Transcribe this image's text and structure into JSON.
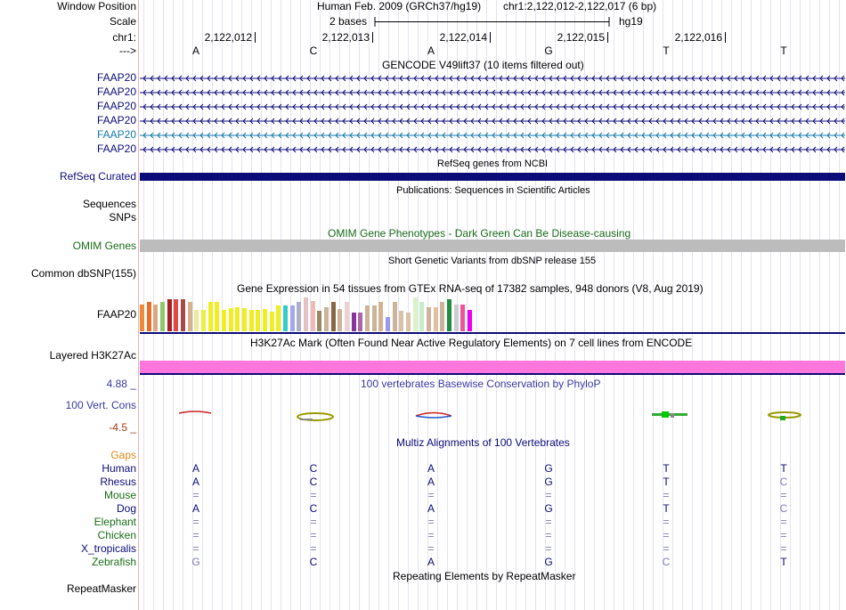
{
  "header": {
    "window_position_label": "Window Position",
    "scale_label": "Scale",
    "chrom_label": "chr1:",
    "strand_label": "--->",
    "assembly_text": "Human Feb. 2009 (GRCh37/hg19)",
    "position_text": "chr1:2,122,012-2,122,017 (6 bp)",
    "scale_text": "2 bases",
    "db_text": "hg19",
    "ruler_ticks": [
      "2,122,012",
      "2,122,013",
      "2,122,014",
      "2,122,015",
      "2,122,016"
    ],
    "sequence": [
      "A",
      "C",
      "A",
      "G",
      "T",
      "T"
    ]
  },
  "gencode": {
    "title": "GENCODE V49lift37 (10 items filtered out)",
    "transcripts": [
      {
        "label": "FAAP20",
        "color": "#0c0c78"
      },
      {
        "label": "FAAP20",
        "color": "#0c0c78"
      },
      {
        "label": "FAAP20",
        "color": "#0c0c78"
      },
      {
        "label": "FAAP20",
        "color": "#0c0c78"
      },
      {
        "label": "FAAP20",
        "color": "#1479a8"
      },
      {
        "label": "FAAP20",
        "color": "#0c0c78"
      }
    ]
  },
  "refseq": {
    "title": "RefSeq genes from NCBI",
    "label": "RefSeq Curated",
    "color": "#0c0c78"
  },
  "publications": {
    "title": "Publications: Sequences in Scientific Articles",
    "sequences_label": "Sequences",
    "snps_label": "SNPs"
  },
  "omim": {
    "title": "OMIM Gene Phenotypes - Dark Green Can Be Disease-causing",
    "label": "OMIM Genes",
    "color": "#1a6b1a"
  },
  "dbsnp": {
    "title": "Short Genetic Variants from dbSNP release 155",
    "label": "Common dbSNP(155)"
  },
  "gtex": {
    "title": "Gene Expression in 54 tissues from GTEx RNA-seq of 17382 samples, 948 donors (V8, Aug 2019)",
    "label": "FAAP20",
    "bars": [
      {
        "value": 0.8,
        "color": "#ee8a3a"
      },
      {
        "value": 0.88,
        "color": "#e96d2b"
      },
      {
        "value": 0.8,
        "color": "#d9a87f"
      },
      {
        "value": 0.88,
        "color": "#90c96a"
      },
      {
        "value": 0.96,
        "color": "#a62222"
      },
      {
        "value": 0.96,
        "color": "#e04848"
      },
      {
        "value": 0.96,
        "color": "#a44a4a"
      },
      {
        "value": 0.88,
        "color": "#d6b28e"
      },
      {
        "value": 0.64,
        "color": "#efeaa0"
      },
      {
        "value": 0.64,
        "color": "#eeee44"
      },
      {
        "value": 0.86,
        "color": "#eeee22"
      },
      {
        "value": 0.86,
        "color": "#eeee22"
      },
      {
        "value": 0.62,
        "color": "#eeee22"
      },
      {
        "value": 0.68,
        "color": "#eeee22"
      },
      {
        "value": 0.72,
        "color": "#eeee22"
      },
      {
        "value": 0.68,
        "color": "#eeee22"
      },
      {
        "value": 0.62,
        "color": "#eeee22"
      },
      {
        "value": 0.62,
        "color": "#eeee22"
      },
      {
        "value": 0.66,
        "color": "#eeee22"
      },
      {
        "value": 0.58,
        "color": "#eeee22"
      },
      {
        "value": 0.76,
        "color": "#eeee22"
      },
      {
        "value": 0.76,
        "color": "#33cccc"
      },
      {
        "value": 0.76,
        "color": "#a6a6ee"
      },
      {
        "value": 0.86,
        "color": "#aab0c8"
      },
      {
        "value": 1.0,
        "color": "#e6c3c3"
      },
      {
        "value": 0.9,
        "color": "#eebbbb"
      },
      {
        "value": 0.6,
        "color": "#998866"
      },
      {
        "value": 0.7,
        "color": "#ccb49a"
      },
      {
        "value": 0.86,
        "color": "#886644"
      },
      {
        "value": 0.66,
        "color": "#ccb49a"
      },
      {
        "value": 0.86,
        "color": "#eed0d0"
      },
      {
        "value": 0.56,
        "color": "#883399"
      },
      {
        "value": 0.56,
        "color": "#aa66aa"
      },
      {
        "value": 0.76,
        "color": "#ccb49a"
      },
      {
        "value": 0.76,
        "color": "#ccb49a"
      },
      {
        "value": 0.86,
        "color": "#d6b28e"
      },
      {
        "value": 0.42,
        "color": "#9999ee"
      },
      {
        "value": 0.86,
        "color": "#ccb49a"
      },
      {
        "value": 0.6,
        "color": "#d9c2a6"
      },
      {
        "value": 0.56,
        "color": "#d9c2a6"
      },
      {
        "value": 1.0,
        "color": "#dcf2c8"
      },
      {
        "value": 0.86,
        "color": "#c6eec6"
      },
      {
        "value": 0.72,
        "color": "#ccb49a"
      },
      {
        "value": 0.72,
        "color": "#e0c0a0"
      },
      {
        "value": 0.86,
        "color": "#ccb49a"
      },
      {
        "value": 0.96,
        "color": "#1f8f3f"
      },
      {
        "value": 0.78,
        "color": "#cccccc"
      },
      {
        "value": 0.78,
        "color": "#ee5599"
      },
      {
        "value": 0.62,
        "color": "#ee00ee"
      }
    ]
  },
  "h3k27ac": {
    "title": "H3K27Ac Mark (Often Found Near Active Regulatory Elements) on 7 cell lines from ENCODE",
    "label": "Layered H3K27Ac",
    "color": "#ff77dd"
  },
  "conservation": {
    "title": "100 vertebrates Basewise Conservation by PhyloP",
    "label": "100 Vert. Cons",
    "max_label": "4.88 _",
    "min_label": "-4.5 _"
  },
  "multiz": {
    "title": "Multiz Alignments of 100 Vertebrates",
    "gaps_label": "Gaps",
    "species": [
      {
        "name": "Human",
        "name_color": "#0c0c78",
        "bases": [
          "A",
          "C",
          "A",
          "G",
          "T",
          "T"
        ],
        "dim": [
          false,
          false,
          false,
          false,
          false,
          false
        ]
      },
      {
        "name": "Rhesus",
        "name_color": "#0c0c78",
        "bases": [
          "A",
          "C",
          "A",
          "G",
          "T",
          "C"
        ],
        "dim": [
          false,
          false,
          false,
          false,
          false,
          true
        ]
      },
      {
        "name": "Mouse",
        "name_color": "#1a6b1a",
        "bases": [
          "=",
          "=",
          "=",
          "=",
          "=",
          "="
        ],
        "dim": [
          true,
          true,
          true,
          true,
          true,
          true
        ]
      },
      {
        "name": "Dog",
        "name_color": "#0c0c78",
        "bases": [
          "A",
          "C",
          "A",
          "G",
          "T",
          "C"
        ],
        "dim": [
          false,
          false,
          false,
          false,
          false,
          true
        ]
      },
      {
        "name": "Elephant",
        "name_color": "#1a6b1a",
        "bases": [
          "=",
          "=",
          "=",
          "=",
          "=",
          "="
        ],
        "dim": [
          true,
          true,
          true,
          true,
          true,
          true
        ]
      },
      {
        "name": "Chicken",
        "name_color": "#1a6b1a",
        "bases": [
          "=",
          "=",
          "=",
          "=",
          "=",
          "="
        ],
        "dim": [
          true,
          true,
          true,
          true,
          true,
          true
        ]
      },
      {
        "name": "X_tropicalis",
        "name_color": "#0c0c78",
        "bases": [
          "=",
          "=",
          "=",
          "=",
          "=",
          "="
        ],
        "dim": [
          true,
          true,
          true,
          true,
          true,
          true
        ]
      },
      {
        "name": "Zebrafish",
        "name_color": "#1a6b1a",
        "bases": [
          "G",
          "C",
          "A",
          "G",
          "C",
          "T"
        ],
        "dim": [
          true,
          false,
          false,
          false,
          true,
          false
        ]
      }
    ]
  },
  "repeatmasker": {
    "title": "Repeating Elements by RepeatMasker",
    "label": "RepeatMasker"
  }
}
